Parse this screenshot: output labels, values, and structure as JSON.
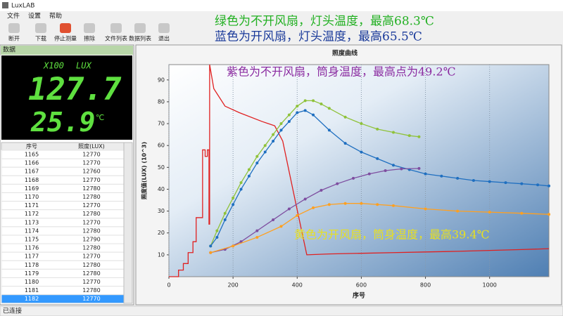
{
  "window": {
    "title": "LuxLAB",
    "menu": [
      "文件",
      "设置",
      "帮助"
    ],
    "toolbar": [
      "断开",
      "下载",
      "停止测量",
      "擦除",
      "文件列表",
      "数据列表",
      "退出"
    ],
    "status": "已连接"
  },
  "panel": {
    "title": "数据",
    "display": {
      "multiplier": "X100",
      "unit": "LUX",
      "lux": "127.7",
      "temp": "25.9",
      "temp_unit": "℃"
    },
    "table": {
      "columns": [
        "序号",
        "照度(LUX)"
      ],
      "rows": [
        [
          1165,
          12770
        ],
        [
          1166,
          12770
        ],
        [
          1167,
          12760
        ],
        [
          1168,
          12770
        ],
        [
          1169,
          12780
        ],
        [
          1170,
          12780
        ],
        [
          1171,
          12770
        ],
        [
          1172,
          12780
        ],
        [
          1173,
          12770
        ],
        [
          1174,
          12780
        ],
        [
          1175,
          12790
        ],
        [
          1176,
          12780
        ],
        [
          1177,
          12770
        ],
        [
          1178,
          12780
        ],
        [
          1179,
          12780
        ],
        [
          1180,
          12770
        ],
        [
          1181,
          12780
        ],
        [
          1182,
          12770
        ]
      ]
    }
  },
  "chart_data": {
    "type": "line",
    "title": "照度曲线",
    "x_label": "序号",
    "y_label": "照度值(LUX) (10^3)",
    "xlim": [
      0,
      1185
    ],
    "ylim": [
      0,
      97
    ],
    "xticks": [
      0,
      200,
      400,
      600,
      800,
      1000
    ],
    "yticks": [
      10,
      20,
      30,
      40,
      50,
      60,
      70,
      80,
      90
    ],
    "grid": true,
    "series": [
      {
        "color": "#e02020",
        "markers": false,
        "x": [
          0,
          30,
          30,
          45,
          45,
          60,
          60,
          75,
          75,
          85,
          85,
          105,
          105,
          113,
          113,
          120,
          120,
          125,
          125,
          127,
          127,
          140,
          175,
          220,
          290,
          330,
          355,
          395,
          430,
          500,
          600,
          700,
          800,
          900,
          1000,
          1100,
          1185
        ],
        "values": [
          0,
          0,
          3,
          3,
          6,
          6,
          11,
          11,
          16,
          16,
          27,
          27,
          58,
          58,
          55,
          55,
          58,
          58,
          24,
          24,
          97,
          86,
          78,
          75,
          71,
          69,
          62,
          34,
          10,
          10.4,
          10.7,
          11,
          11.3,
          11.6,
          12,
          12.4,
          12.8
        ]
      },
      {
        "color": "#8fc23a",
        "markers": true,
        "x": [
          130,
          150,
          175,
          200,
          225,
          250,
          275,
          300,
          325,
          350,
          375,
          400,
          425,
          450,
          475,
          500,
          550,
          600,
          650,
          700,
          750,
          780
        ],
        "values": [
          14,
          21,
          29,
          36,
          43,
          49,
          55,
          60,
          65,
          70,
          74,
          78,
          80.5,
          80.5,
          79,
          77,
          73,
          70,
          67.5,
          66,
          64.5,
          64
        ]
      },
      {
        "color": "#1f6fc0",
        "markers": true,
        "x": [
          130,
          150,
          175,
          200,
          225,
          250,
          275,
          300,
          325,
          350,
          375,
          400,
          425,
          450,
          500,
          550,
          600,
          650,
          700,
          750,
          800,
          850,
          900,
          950,
          1000,
          1050,
          1100,
          1150,
          1185
        ],
        "values": [
          14,
          18,
          26,
          33,
          40,
          46,
          52,
          57,
          62,
          67,
          71,
          75,
          76,
          74,
          67,
          61,
          57,
          54,
          51,
          49,
          47,
          46,
          45,
          44,
          43.5,
          43,
          42.5,
          42,
          41.5
        ]
      },
      {
        "color": "#7e4ea0",
        "markers": true,
        "x": [
          130,
          175,
          225,
          275,
          325,
          375,
          425,
          475,
          525,
          575,
          625,
          675,
          725,
          780
        ],
        "values": [
          11,
          12.5,
          16,
          21,
          26,
          31,
          35.5,
          39.5,
          42.5,
          45,
          47,
          48.5,
          49.3,
          49.5
        ]
      },
      {
        "color": "#ffa020",
        "markers": true,
        "x": [
          130,
          200,
          275,
          350,
          400,
          450,
          500,
          550,
          600,
          650,
          700,
          800,
          900,
          1000,
          1100,
          1185
        ],
        "values": [
          11,
          14,
          18,
          23,
          28,
          31.5,
          33,
          33.5,
          33.5,
          33,
          32.5,
          31,
          30,
          29.5,
          29,
          28.5
        ]
      }
    ],
    "annotations": [
      {
        "text": "绿色为不开风扇，灯头温度，最高68.3℃",
        "color": "#22b022"
      },
      {
        "text": "蓝色为开风扇，灯头温度，最高65.5℃",
        "color": "#1a3a9a"
      },
      {
        "text": "紫色为不开风扇，筒身温度，最高点为49.2℃",
        "color": "#8a2aa0"
      },
      {
        "text": "黄色为开风扇，筒身温度，最高39.4℃",
        "color": "#e8e020"
      }
    ]
  }
}
